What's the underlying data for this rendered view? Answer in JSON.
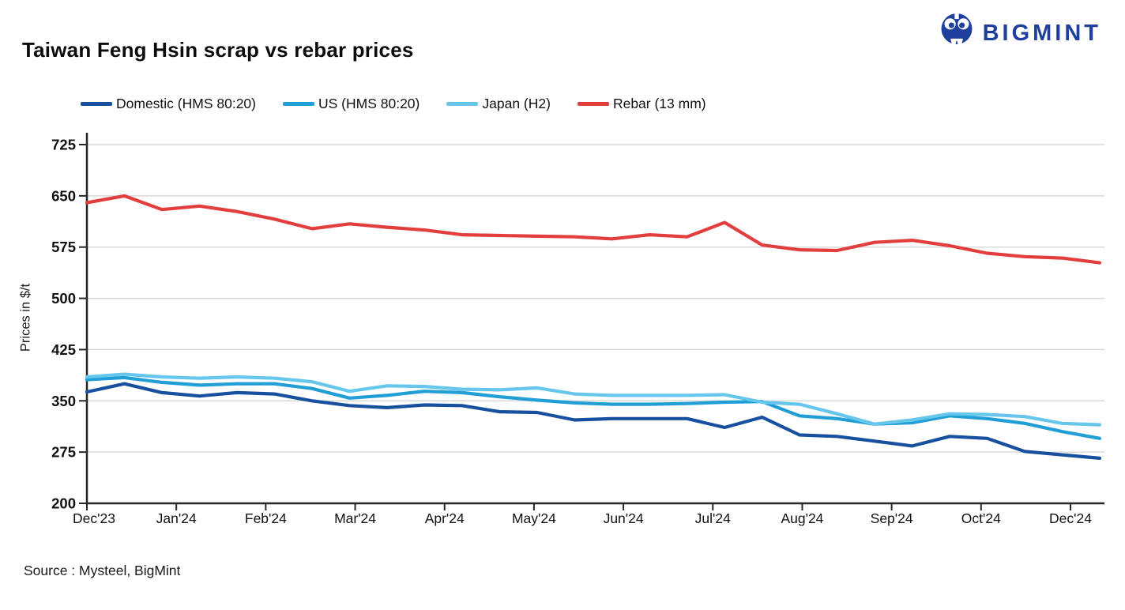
{
  "header": {
    "title": "Taiwan Feng Hsin scrap vs rebar prices",
    "logo": {
      "text": "BIGMINT",
      "icon": "bigmint-owl-icon",
      "color": "#1e3f9e"
    }
  },
  "source": {
    "label": "Source : Mysteel, BigMint"
  },
  "chart_data": {
    "type": "line",
    "title": "Taiwan Feng Hsin scrap vs rebar prices",
    "ylabel": "Prices in $/t",
    "ylim": [
      200,
      725
    ],
    "yticks": [
      200,
      275,
      350,
      425,
      500,
      575,
      650,
      725
    ],
    "x_tick_labels": [
      "Dec'23",
      "Jan'24",
      "Feb'24",
      "Mar'24",
      "Apr'24",
      "May'24",
      "Jun'24",
      "Jul'24",
      "Aug'24",
      "Sep'24",
      "Oct'24",
      "Dec'24"
    ],
    "grid": "horizontal",
    "legend_position": "top",
    "colors": {
      "grid": "#d9d9d9",
      "axis": "#262626"
    },
    "series": [
      {
        "name": "Domestic (HMS 80:20)",
        "color": "#17509e",
        "values": [
          363,
          375,
          362,
          357,
          362,
          360,
          350,
          343,
          340,
          344,
          343,
          334,
          333,
          322,
          324,
          324,
          324,
          311,
          326,
          300,
          298,
          291,
          284,
          298,
          295,
          276,
          271,
          266
        ]
      },
      {
        "name": "US (HMS 80:20)",
        "color": "#219ed6",
        "values": [
          381,
          384,
          377,
          373,
          375,
          375,
          368,
          354,
          358,
          364,
          362,
          356,
          351,
          347,
          345,
          345,
          346,
          348,
          349,
          328,
          324,
          316,
          318,
          328,
          324,
          317,
          305,
          295
        ]
      },
      {
        "name": "Japan (H2)",
        "color": "#66c6ec",
        "values": [
          385,
          389,
          385,
          383,
          385,
          383,
          378,
          364,
          372,
          371,
          367,
          366,
          369,
          360,
          358,
          358,
          358,
          359,
          348,
          345,
          331,
          316,
          322,
          331,
          330,
          327,
          317,
          315
        ]
      },
      {
        "name": "Rebar (13 mm)",
        "color": "#e33e3e",
        "values": [
          640,
          650,
          630,
          635,
          627,
          616,
          602,
          609,
          604,
          600,
          593,
          592,
          591,
          590,
          587,
          593,
          590,
          611,
          578,
          571,
          570,
          582,
          585,
          577,
          566,
          561,
          559,
          552
        ]
      }
    ]
  }
}
